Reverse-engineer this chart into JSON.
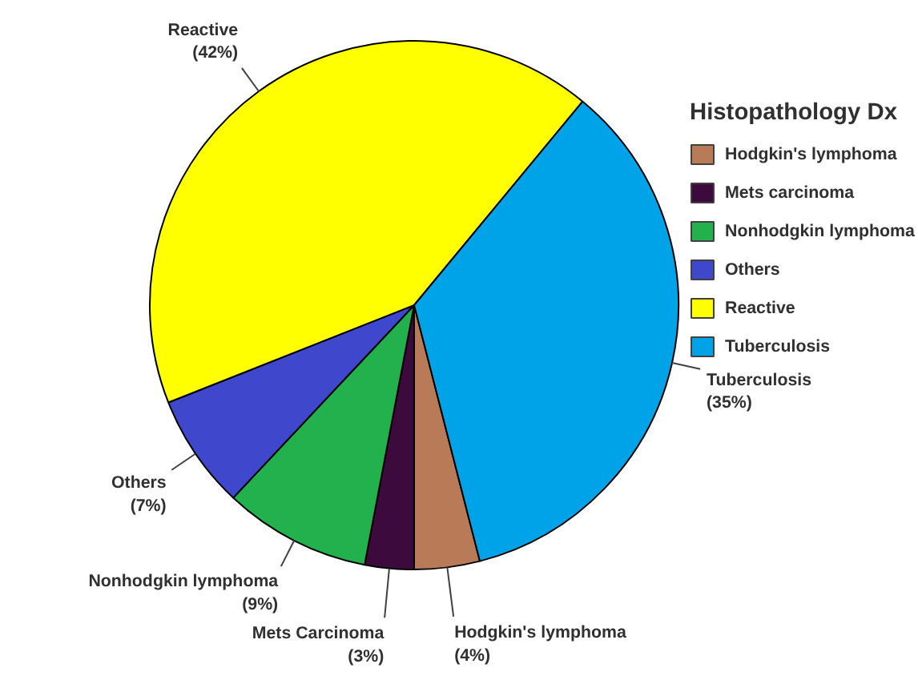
{
  "chart_data": {
    "type": "pie",
    "legend_title": "Histopathology Dx",
    "legend": "right",
    "categories": [
      "Hodgkin's lymphoma",
      "Mets carcinoma",
      "Nonhodgkin lymphoma",
      "Others",
      "Reactive",
      "Tuberculosis"
    ],
    "values": [
      4,
      3,
      9,
      7,
      42,
      35
    ],
    "colors": [
      "#b97a57",
      "#3d0a3d",
      "#22b14c",
      "#3f48cc",
      "#ffff00",
      "#00a2e8"
    ],
    "value_labels": [
      "Hodgkin's lymphoma\n(4%)",
      "Mets Carcinoma\n(3%)",
      "Nonhodgkin lymphoma\n(9%)",
      "Others\n(7%)",
      "Reactive\n(42%)",
      "Tuberculosis\n(35%)"
    ]
  }
}
